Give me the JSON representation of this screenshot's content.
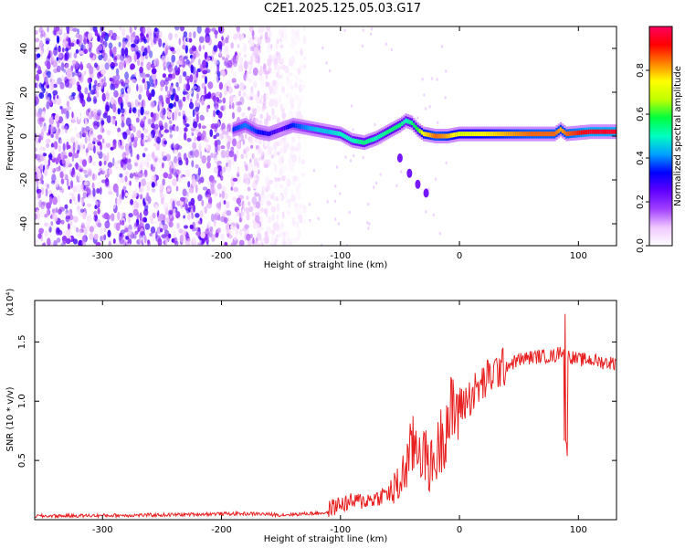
{
  "title": "C2E1.2025.125.05.03.G17",
  "chart_data": [
    {
      "type": "heatmap",
      "title": "C2E1.2025.125.05.03.G17",
      "xlabel": "Height of straight line (km)",
      "ylabel": "Frequency (Hz)",
      "xlim": [
        -357,
        132
      ],
      "ylim": [
        -50,
        50
      ],
      "x_ticks": [
        -300,
        -200,
        -100,
        0,
        100
      ],
      "x_tick_labels": [
        "-300",
        "-200",
        "-100",
        "0",
        "100"
      ],
      "y_ticks": [
        -40,
        -20,
        0,
        20,
        40
      ],
      "y_tick_labels": [
        "-40",
        "-20",
        "0",
        "20",
        "40"
      ],
      "colorbar": {
        "label": "Normalized spectral amplitude",
        "range": [
          0,
          1
        ],
        "ticks": [
          0.0,
          0.2,
          0.4,
          0.6,
          0.8
        ],
        "tick_labels": [
          "0.0",
          "0.2",
          "0.4",
          "0.6",
          "0.8"
        ],
        "colors": [
          "#ffffff",
          "#f0c8ff",
          "#a040ff",
          "#6000ff",
          "#0000ff",
          "#00a0ff",
          "#00ffc0",
          "#00ff40",
          "#c0ff00",
          "#ffff00",
          "#ff8000",
          "#ff0000",
          "#ff0060"
        ]
      },
      "noise_region": {
        "x": [
          -357,
          -130
        ],
        "y": [
          -50,
          50
        ]
      },
      "ridge": [
        {
          "x": -190,
          "y": 3,
          "amp": 0.35
        },
        {
          "x": -180,
          "y": 5,
          "amp": 0.4
        },
        {
          "x": -170,
          "y": 2,
          "amp": 0.35
        },
        {
          "x": -160,
          "y": 1,
          "amp": 0.3
        },
        {
          "x": -150,
          "y": 3,
          "amp": 0.25
        },
        {
          "x": -140,
          "y": 5,
          "amp": 0.35
        },
        {
          "x": -130,
          "y": 4,
          "amp": 0.4
        },
        {
          "x": -120,
          "y": 3,
          "amp": 0.45
        },
        {
          "x": -110,
          "y": 2,
          "amp": 0.45
        },
        {
          "x": -100,
          "y": 1,
          "amp": 0.5
        },
        {
          "x": -90,
          "y": -2,
          "amp": 0.5
        },
        {
          "x": -80,
          "y": -3,
          "amp": 0.55
        },
        {
          "x": -70,
          "y": -1,
          "amp": 0.5
        },
        {
          "x": -60,
          "y": 2,
          "amp": 0.55
        },
        {
          "x": -50,
          "y": 5,
          "amp": 0.55
        },
        {
          "x": -45,
          "y": 7,
          "amp": 0.5
        },
        {
          "x": -40,
          "y": 6,
          "amp": 0.55
        },
        {
          "x": -35,
          "y": 3,
          "amp": 0.6
        },
        {
          "x": -30,
          "y": 1,
          "amp": 0.75
        },
        {
          "x": -20,
          "y": 0,
          "amp": 0.85
        },
        {
          "x": -10,
          "y": 0,
          "amp": 0.8
        },
        {
          "x": 0,
          "y": 1,
          "amp": 0.7
        },
        {
          "x": 20,
          "y": 1,
          "amp": 0.75
        },
        {
          "x": 40,
          "y": 1,
          "amp": 0.8
        },
        {
          "x": 60,
          "y": 1,
          "amp": 0.85
        },
        {
          "x": 80,
          "y": 1,
          "amp": 0.85
        },
        {
          "x": 85,
          "y": 3,
          "amp": 0.8
        },
        {
          "x": 90,
          "y": 1,
          "amp": 0.85
        },
        {
          "x": 110,
          "y": 2,
          "amp": 0.95
        },
        {
          "x": 132,
          "y": 2,
          "amp": 0.95
        }
      ],
      "branch": [
        {
          "x": -50,
          "y": -10
        },
        {
          "x": -42,
          "y": -17
        },
        {
          "x": -35,
          "y": -22
        },
        {
          "x": -28,
          "y": -26
        }
      ]
    },
    {
      "type": "line",
      "xlabel": "Height of straight line (km)",
      "ylabel": "SNR (10 * v/v)",
      "y_multiplier": "(x10⁴)",
      "xlim": [
        -357,
        132
      ],
      "ylim": [
        0,
        1.85
      ],
      "x_ticks": [
        -300,
        -200,
        -100,
        0,
        100
      ],
      "x_tick_labels": [
        "-300",
        "-200",
        "-100",
        "0",
        "100"
      ],
      "y_ticks": [
        0.5,
        1.0,
        1.5
      ],
      "y_tick_labels": [
        "0.5",
        "1.0",
        "1.5"
      ],
      "series": [
        {
          "color": "#e82020",
          "x": [
            -357,
            -300,
            -250,
            -200,
            -170,
            -150,
            -130,
            -110,
            -100,
            -90,
            -80,
            -70,
            -60,
            -50,
            -45,
            -40,
            -35,
            -30,
            -25,
            -20,
            -15,
            -10,
            -5,
            0,
            10,
            20,
            30,
            40,
            50,
            60,
            70,
            80,
            85,
            88,
            90,
            92,
            95,
            100,
            110,
            120,
            132
          ],
          "y": [
            0.03,
            0.035,
            0.04,
            0.05,
            0.05,
            0.04,
            0.05,
            0.06,
            0.1,
            0.12,
            0.13,
            0.15,
            0.2,
            0.3,
            0.45,
            0.6,
            0.65,
            0.55,
            0.45,
            0.5,
            0.7,
            0.85,
            0.9,
            0.95,
            1.05,
            1.15,
            1.25,
            1.3,
            1.35,
            1.37,
            1.38,
            1.38,
            1.42,
            1.45,
            1.4,
            1.38,
            1.37,
            1.35,
            1.35,
            1.33,
            1.32
          ]
        }
      ]
    }
  ]
}
